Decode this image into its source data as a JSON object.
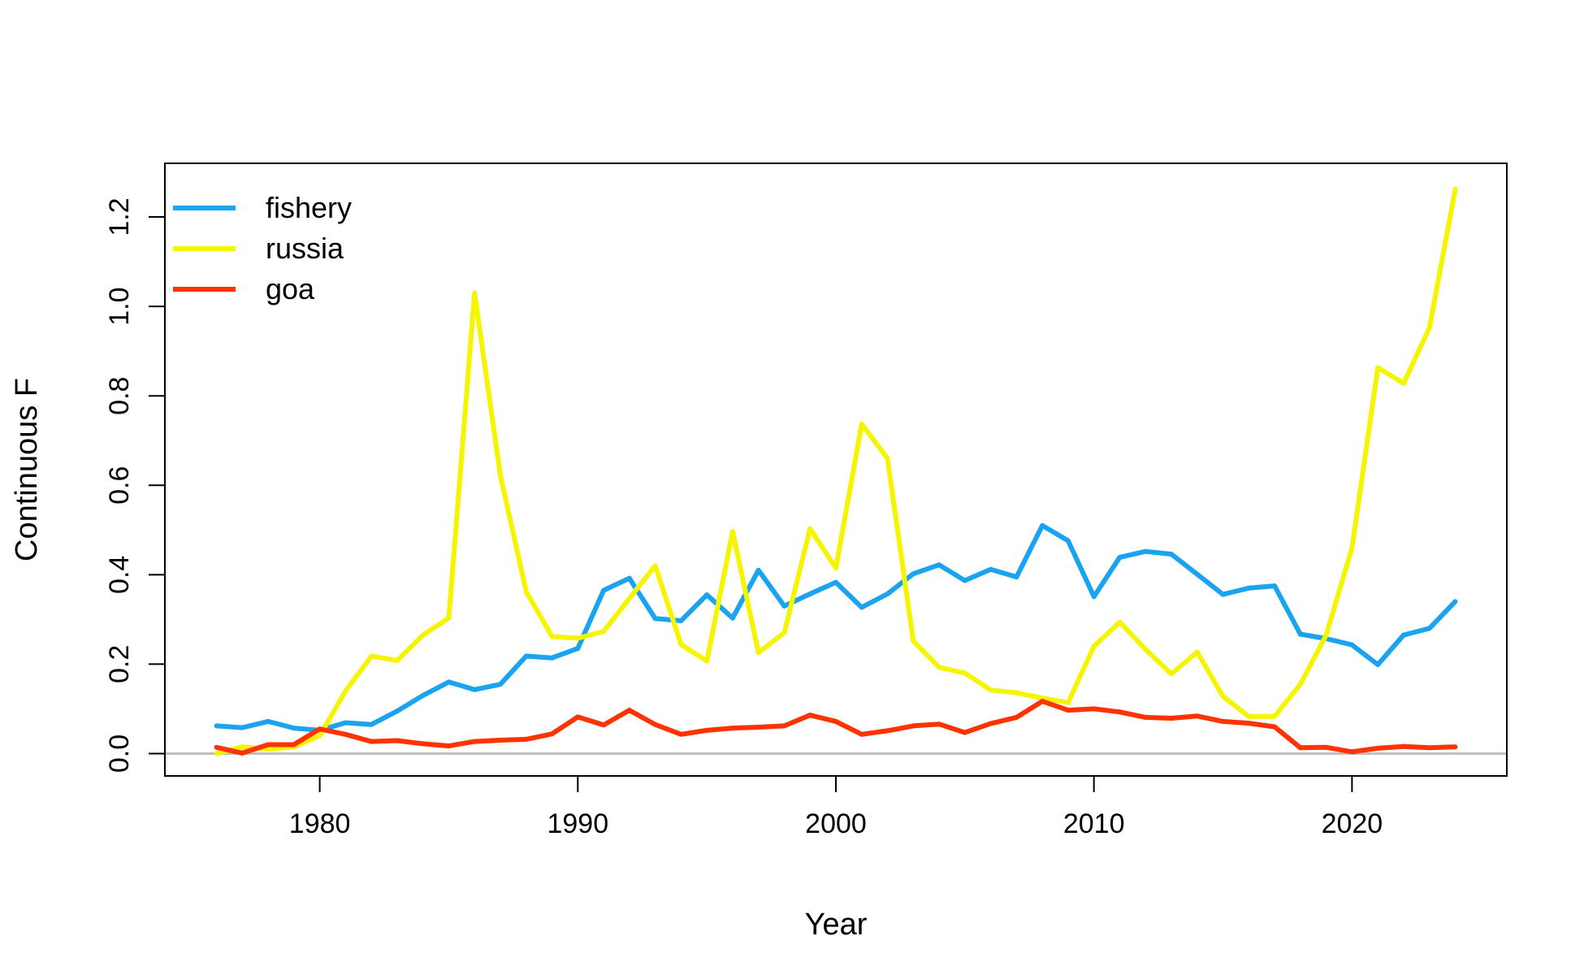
{
  "chart_data": {
    "type": "line",
    "xlabel": "Year",
    "ylabel": "Continuous F",
    "xlim": [
      1974,
      2026
    ],
    "ylim": [
      -0.05,
      1.32
    ],
    "x_ticks": [
      1980,
      1990,
      2000,
      2010,
      2020
    ],
    "y_ticks": [
      0.0,
      0.2,
      0.4,
      0.6,
      0.8,
      1.0,
      1.2
    ],
    "x_tick_labels": [
      "1980",
      "1990",
      "2000",
      "2010",
      "2020"
    ],
    "y_tick_labels": [
      "0.0",
      "0.2",
      "0.4",
      "0.6",
      "0.8",
      "1.0",
      "1.2"
    ],
    "reference_line": {
      "y": 0,
      "color": "#BEBEBE"
    },
    "legend_position": "top-left",
    "x": [
      1976,
      1977,
      1978,
      1979,
      1980,
      1981,
      1982,
      1983,
      1984,
      1985,
      1986,
      1987,
      1988,
      1989,
      1990,
      1991,
      1992,
      1993,
      1994,
      1995,
      1996,
      1997,
      1998,
      1999,
      2000,
      2001,
      2002,
      2003,
      2004,
      2005,
      2006,
      2007,
      2008,
      2009,
      2010,
      2011,
      2012,
      2013,
      2014,
      2015,
      2016,
      2017,
      2018,
      2019,
      2020,
      2021,
      2022,
      2023,
      2024
    ],
    "series": [
      {
        "name": "fishery",
        "color": "#1AA3F0",
        "values": [
          0.062,
          0.058,
          0.072,
          0.057,
          0.052,
          0.069,
          0.065,
          0.095,
          0.13,
          0.16,
          0.143,
          0.155,
          0.218,
          0.214,
          0.235,
          0.365,
          0.392,
          0.302,
          0.297,
          0.355,
          0.303,
          0.41,
          0.33,
          0.357,
          0.383,
          0.327,
          0.357,
          0.402,
          0.422,
          0.387,
          0.412,
          0.395,
          0.51,
          0.476,
          0.351,
          0.439,
          0.452,
          0.446,
          0.401,
          0.356,
          0.37,
          0.375,
          0.267,
          0.257,
          0.243,
          0.199,
          0.265,
          0.28,
          0.34
        ]
      },
      {
        "name": "russia",
        "color": "#F5F500",
        "values": [
          0.0,
          0.015,
          0.01,
          0.015,
          0.04,
          0.14,
          0.218,
          0.208,
          0.265,
          0.303,
          1.03,
          0.622,
          0.362,
          0.262,
          0.258,
          0.273,
          0.347,
          0.42,
          0.244,
          0.207,
          0.497,
          0.226,
          0.27,
          0.503,
          0.415,
          0.737,
          0.66,
          0.252,
          0.193,
          0.18,
          0.142,
          0.136,
          0.124,
          0.114,
          0.24,
          0.294,
          0.233,
          0.178,
          0.227,
          0.128,
          0.083,
          0.083,
          0.155,
          0.265,
          0.46,
          0.863,
          0.828,
          0.952,
          1.262
        ]
      },
      {
        "name": "goa",
        "color": "#FF3300",
        "values": [
          0.014,
          0.001,
          0.02,
          0.02,
          0.055,
          0.043,
          0.027,
          0.029,
          0.022,
          0.017,
          0.027,
          0.03,
          0.032,
          0.044,
          0.082,
          0.064,
          0.097,
          0.065,
          0.043,
          0.052,
          0.057,
          0.059,
          0.062,
          0.086,
          0.072,
          0.043,
          0.051,
          0.062,
          0.066,
          0.047,
          0.067,
          0.081,
          0.117,
          0.097,
          0.1,
          0.093,
          0.081,
          0.079,
          0.084,
          0.072,
          0.068,
          0.06,
          0.013,
          0.014,
          0.004,
          0.012,
          0.016,
          0.013,
          0.015
        ]
      }
    ]
  }
}
